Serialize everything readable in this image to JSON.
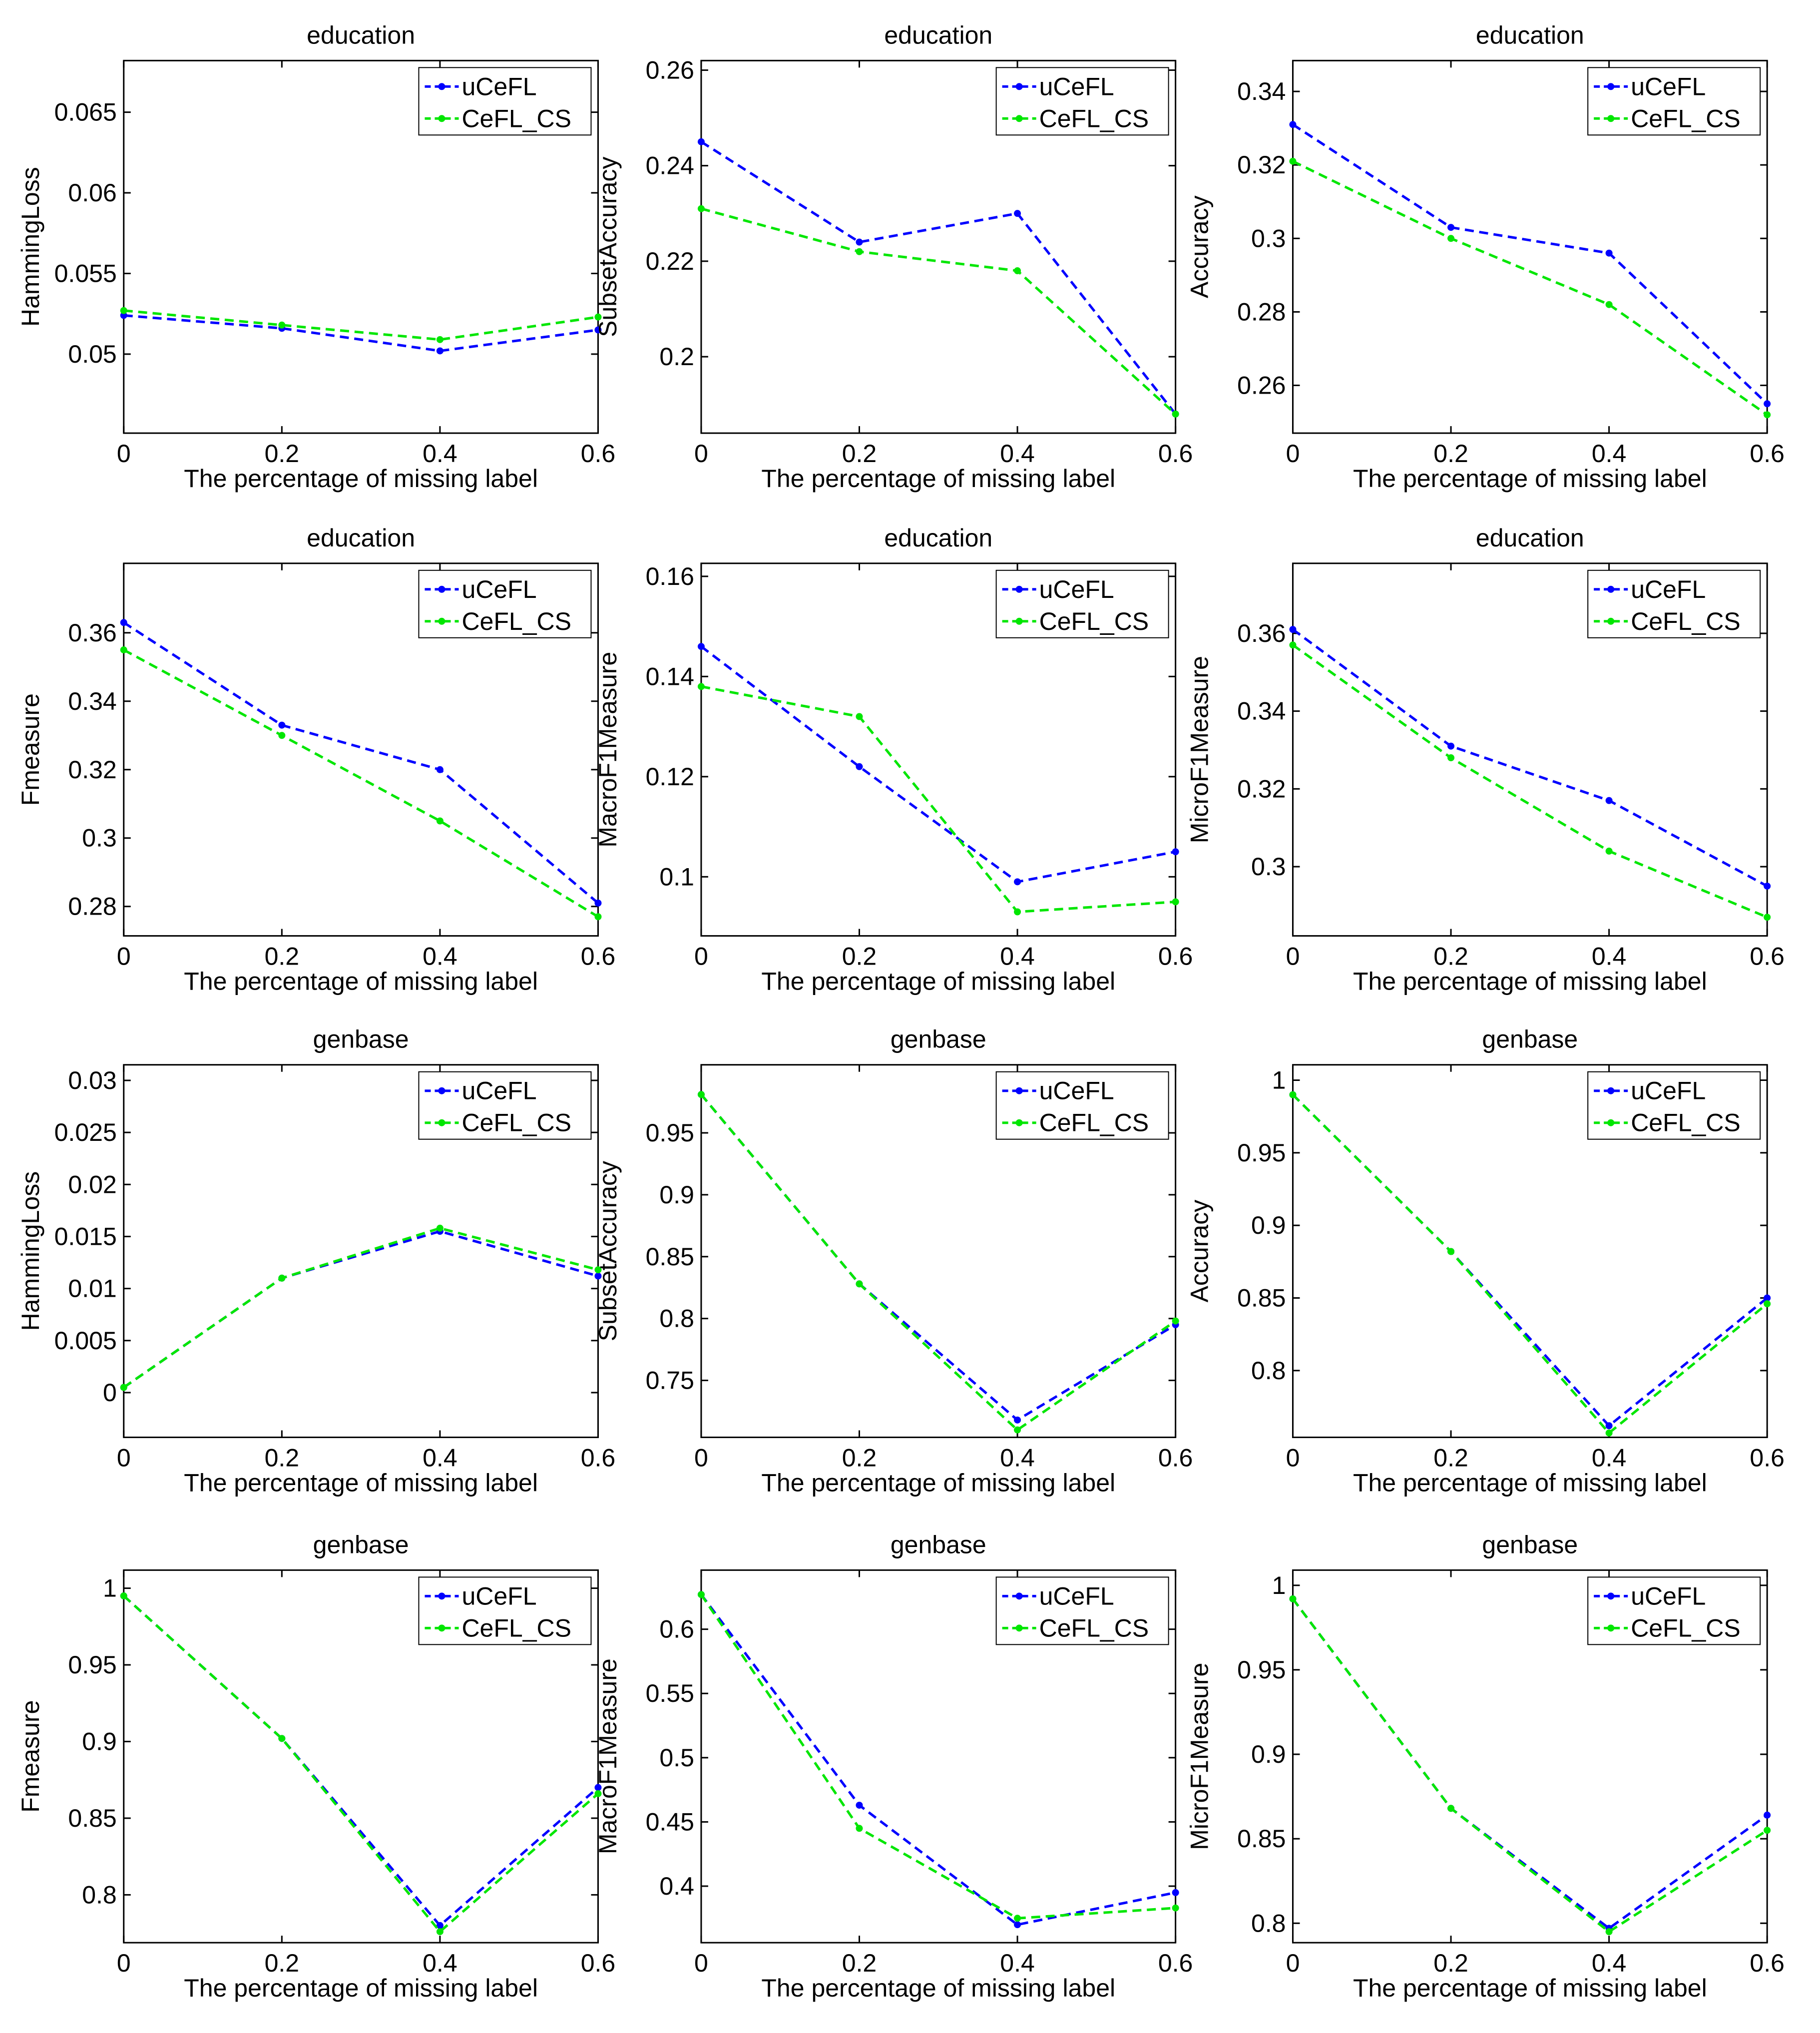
{
  "chart_data": [
    {
      "type": "line",
      "title": "education",
      "ylabel": "HammingLoss",
      "xlabel": "The percentage of missing label",
      "x": [
        0,
        0.2,
        0.4,
        0.6
      ],
      "xlim": [
        0,
        0.6
      ],
      "xticks": [
        0,
        0.2,
        0.4,
        0.6
      ],
      "ylim": [
        0.0451,
        0.0682
      ],
      "yticks": [
        0.05,
        0.055,
        0.06,
        0.065
      ],
      "legend": "upper right",
      "series": [
        {
          "name": "uCeFL",
          "color": "#0000ff",
          "values": [
            0.0524,
            0.0516,
            0.0502,
            0.0515
          ]
        },
        {
          "name": "CeFL_CS",
          "color": "#00e600",
          "values": [
            0.0527,
            0.0518,
            0.0509,
            0.0523
          ]
        }
      ]
    },
    {
      "type": "line",
      "title": "education",
      "ylabel": "SubsetAccuracy",
      "xlabel": "The percentage of missing label",
      "x": [
        0,
        0.2,
        0.4,
        0.6
      ],
      "xlim": [
        0,
        0.6
      ],
      "xticks": [
        0,
        0.2,
        0.4,
        0.6
      ],
      "ylim": [
        0.184,
        0.262
      ],
      "yticks": [
        0.2,
        0.22,
        0.24,
        0.26
      ],
      "legend": "upper right",
      "series": [
        {
          "name": "uCeFL",
          "color": "#0000ff",
          "values": [
            0.245,
            0.224,
            0.23,
            0.188
          ]
        },
        {
          "name": "CeFL_CS",
          "color": "#00e600",
          "values": [
            0.231,
            0.222,
            0.218,
            0.188
          ]
        }
      ]
    },
    {
      "type": "line",
      "title": "education",
      "ylabel": "Accuracy",
      "xlabel": "The percentage of missing label",
      "x": [
        0,
        0.2,
        0.4,
        0.6
      ],
      "xlim": [
        0,
        0.6
      ],
      "xticks": [
        0,
        0.2,
        0.4,
        0.6
      ],
      "ylim": [
        0.247,
        0.3484
      ],
      "yticks": [
        0.26,
        0.28,
        0.3,
        0.32,
        0.34
      ],
      "legend": "upper right",
      "series": [
        {
          "name": "uCeFL",
          "color": "#0000ff",
          "values": [
            0.331,
            0.303,
            0.296,
            0.255
          ]
        },
        {
          "name": "CeFL_CS",
          "color": "#00e600",
          "values": [
            0.321,
            0.3,
            0.282,
            0.252
          ]
        }
      ]
    },
    {
      "type": "line",
      "title": "education",
      "ylabel": "Fmeasure",
      "xlabel": "The percentage of missing label",
      "x": [
        0,
        0.2,
        0.4,
        0.6
      ],
      "xlim": [
        0,
        0.6
      ],
      "xticks": [
        0,
        0.2,
        0.4,
        0.6
      ],
      "ylim": [
        0.2714,
        0.3803
      ],
      "yticks": [
        0.28,
        0.3,
        0.32,
        0.34,
        0.36
      ],
      "legend": "upper right",
      "series": [
        {
          "name": "uCeFL",
          "color": "#0000ff",
          "values": [
            0.363,
            0.333,
            0.32,
            0.281
          ]
        },
        {
          "name": "CeFL_CS",
          "color": "#00e600",
          "values": [
            0.355,
            0.33,
            0.305,
            0.277
          ]
        }
      ]
    },
    {
      "type": "line",
      "title": "education",
      "ylabel": "MacroF1Measure",
      "xlabel": "The percentage of missing label",
      "x": [
        0,
        0.2,
        0.4,
        0.6
      ],
      "xlim": [
        0,
        0.6
      ],
      "xticks": [
        0,
        0.2,
        0.4,
        0.6
      ],
      "ylim": [
        0.0882,
        0.1626
      ],
      "yticks": [
        0.1,
        0.12,
        0.14,
        0.16
      ],
      "legend": "upper right",
      "series": [
        {
          "name": "uCeFL",
          "color": "#0000ff",
          "values": [
            0.146,
            0.122,
            0.099,
            0.105
          ]
        },
        {
          "name": "CeFL_CS",
          "color": "#00e600",
          "values": [
            0.138,
            0.132,
            0.093,
            0.095
          ]
        }
      ]
    },
    {
      "type": "line",
      "title": "education",
      "ylabel": "MicroF1Measure",
      "xlabel": "The percentage of missing label",
      "x": [
        0,
        0.2,
        0.4,
        0.6
      ],
      "xlim": [
        0,
        0.6
      ],
      "xticks": [
        0,
        0.2,
        0.4,
        0.6
      ],
      "ylim": [
        0.2822,
        0.378
      ],
      "yticks": [
        0.3,
        0.32,
        0.34,
        0.36
      ],
      "legend": "upper right",
      "series": [
        {
          "name": "uCeFL",
          "color": "#0000ff",
          "values": [
            0.361,
            0.331,
            0.317,
            0.295
          ]
        },
        {
          "name": "CeFL_CS",
          "color": "#00e600",
          "values": [
            0.357,
            0.328,
            0.304,
            0.287
          ]
        }
      ]
    },
    {
      "type": "line",
      "title": "genbase",
      "ylabel": "HammingLoss",
      "xlabel": "The percentage of missing label",
      "x": [
        0,
        0.2,
        0.4,
        0.6
      ],
      "xlim": [
        0,
        0.6
      ],
      "xticks": [
        0,
        0.2,
        0.4,
        0.6
      ],
      "ylim": [
        -0.0043,
        0.0315
      ],
      "yticks": [
        0,
        0.005,
        0.01,
        0.015,
        0.02,
        0.025,
        0.03
      ],
      "legend": "upper right",
      "series": [
        {
          "name": "uCeFL",
          "color": "#0000ff",
          "values": [
            0.0005,
            0.011,
            0.0155,
            0.0112
          ]
        },
        {
          "name": "CeFL_CS",
          "color": "#00e600",
          "values": [
            0.0005,
            0.011,
            0.0158,
            0.0118
          ]
        }
      ]
    },
    {
      "type": "line",
      "title": "genbase",
      "ylabel": "SubsetAccuracy",
      "xlabel": "The percentage of missing label",
      "x": [
        0,
        0.2,
        0.4,
        0.6
      ],
      "xlim": [
        0,
        0.6
      ],
      "xticks": [
        0,
        0.2,
        0.4,
        0.6
      ],
      "ylim": [
        0.704,
        1.005
      ],
      "yticks": [
        0.75,
        0.8,
        0.85,
        0.9,
        0.95
      ],
      "legend": "upper right",
      "series": [
        {
          "name": "uCeFL",
          "color": "#0000ff",
          "values": [
            0.981,
            0.828,
            0.718,
            0.795
          ]
        },
        {
          "name": "CeFL_CS",
          "color": "#00e600",
          "values": [
            0.981,
            0.828,
            0.71,
            0.798
          ]
        }
      ]
    },
    {
      "type": "line",
      "title": "genbase",
      "ylabel": "Accuracy",
      "xlabel": "The percentage of missing label",
      "x": [
        0,
        0.2,
        0.4,
        0.6
      ],
      "xlim": [
        0,
        0.6
      ],
      "xticks": [
        0,
        0.2,
        0.4,
        0.6
      ],
      "ylim": [
        0.754,
        1.0106
      ],
      "yticks": [
        0.8,
        0.85,
        0.9,
        0.95,
        1
      ],
      "legend": "upper right",
      "series": [
        {
          "name": "uCeFL",
          "color": "#0000ff",
          "values": [
            0.99,
            0.882,
            0.762,
            0.85
          ]
        },
        {
          "name": "CeFL_CS",
          "color": "#00e600",
          "values": [
            0.99,
            0.882,
            0.757,
            0.846
          ]
        }
      ]
    },
    {
      "type": "line",
      "title": "genbase",
      "ylabel": "Fmeasure",
      "xlabel": "The percentage of missing label",
      "x": [
        0,
        0.2,
        0.4,
        0.6
      ],
      "xlim": [
        0,
        0.6
      ],
      "xticks": [
        0,
        0.2,
        0.4,
        0.6
      ],
      "ylim": [
        0.7688,
        1.0118
      ],
      "yticks": [
        0.8,
        0.85,
        0.9,
        0.95,
        1
      ],
      "legend": "upper right",
      "series": [
        {
          "name": "uCeFL",
          "color": "#0000ff",
          "values": [
            0.995,
            0.902,
            0.78,
            0.87
          ]
        },
        {
          "name": "CeFL_CS",
          "color": "#00e600",
          "values": [
            0.995,
            0.902,
            0.776,
            0.866
          ]
        }
      ]
    },
    {
      "type": "line",
      "title": "genbase",
      "ylabel": "MacroF1Measure",
      "xlabel": "The percentage of missing label",
      "x": [
        0,
        0.2,
        0.4,
        0.6
      ],
      "xlim": [
        0,
        0.6
      ],
      "xticks": [
        0,
        0.2,
        0.4,
        0.6
      ],
      "ylim": [
        0.356,
        0.646
      ],
      "yticks": [
        0.4,
        0.45,
        0.5,
        0.55,
        0.6
      ],
      "legend": "upper right",
      "series": [
        {
          "name": "uCeFL",
          "color": "#0000ff",
          "values": [
            0.627,
            0.463,
            0.37,
            0.395
          ]
        },
        {
          "name": "CeFL_CS",
          "color": "#00e600",
          "values": [
            0.627,
            0.445,
            0.375,
            0.383
          ]
        }
      ]
    },
    {
      "type": "line",
      "title": "genbase",
      "ylabel": "MicroF1Measure",
      "xlabel": "The percentage of missing label",
      "x": [
        0,
        0.2,
        0.4,
        0.6
      ],
      "xlim": [
        0,
        0.6
      ],
      "xticks": [
        0,
        0.2,
        0.4,
        0.6
      ],
      "ylim": [
        0.7885,
        1.009
      ],
      "yticks": [
        0.8,
        0.85,
        0.9,
        0.95,
        1
      ],
      "legend": "upper right",
      "series": [
        {
          "name": "uCeFL",
          "color": "#0000ff",
          "values": [
            0.992,
            0.868,
            0.797,
            0.864
          ]
        },
        {
          "name": "CeFL_CS",
          "color": "#00e600",
          "values": [
            0.992,
            0.868,
            0.795,
            0.855
          ]
        }
      ]
    }
  ]
}
